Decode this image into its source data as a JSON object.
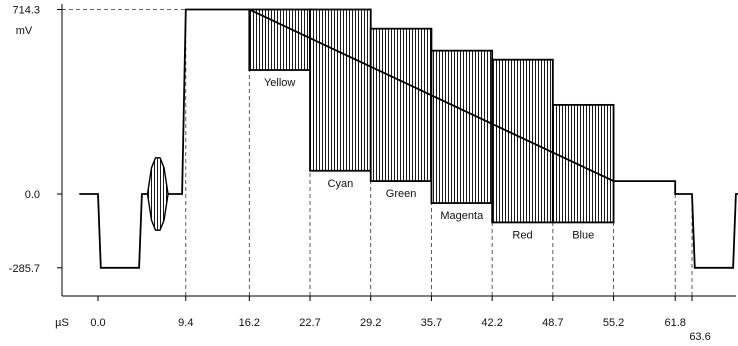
{
  "chart_data": {
    "type": "line",
    "title": "",
    "y_unit": "mV",
    "y_ticks": [
      {
        "label": "714.3",
        "value": 714.3
      },
      {
        "label": "0.0",
        "value": 0.0
      },
      {
        "label": "-285.7",
        "value": -285.7
      }
    ],
    "x_unit": "µS",
    "x_ticks": [
      {
        "label": "0.0",
        "value": 0.0
      },
      {
        "label": "9.4",
        "value": 9.4
      },
      {
        "label": "16.2",
        "value": 16.2
      },
      {
        "label": "22.7",
        "value": 22.7
      },
      {
        "label": "29.2",
        "value": 29.2
      },
      {
        "label": "35.7",
        "value": 35.7
      },
      {
        "label": "42.2",
        "value": 42.2
      },
      {
        "label": "48.7",
        "value": 48.7
      },
      {
        "label": "55.2",
        "value": 55.2
      },
      {
        "label": "61.8",
        "value": 61.8
      },
      {
        "label": "63.6",
        "value": 63.6
      }
    ],
    "bars": [
      {
        "name": "Yellow",
        "start": 16.2,
        "end": 22.7,
        "low": 480,
        "high": 714.3
      },
      {
        "name": "Cyan",
        "start": 22.7,
        "end": 29.2,
        "low": 90,
        "high": 714.3
      },
      {
        "name": "Green",
        "start": 29.2,
        "end": 35.7,
        "low": 50,
        "high": 640
      },
      {
        "name": "Magenta",
        "start": 35.7,
        "end": 42.2,
        "low": -35,
        "high": 555
      },
      {
        "name": "Red",
        "start": 42.2,
        "end": 48.7,
        "low": -110,
        "high": 520
      },
      {
        "name": "Blue",
        "start": 48.7,
        "end": 55.2,
        "low": -110,
        "high": 345
      }
    ],
    "waveform": [
      [
        -2.0,
        0
      ],
      [
        0.0,
        0
      ],
      [
        0.3,
        -285.7
      ],
      [
        4.4,
        -285.7
      ],
      [
        4.7,
        0
      ],
      [
        9.0,
        0
      ],
      [
        9.4,
        714.3
      ],
      [
        16.2,
        714.3
      ],
      [
        55.2,
        50
      ],
      [
        61.8,
        50
      ],
      [
        61.8,
        0
      ],
      [
        63.6,
        0
      ],
      [
        63.9,
        -285.7
      ],
      [
        68.0,
        -285.7
      ],
      [
        68.3,
        0
      ],
      [
        70.0,
        0
      ]
    ],
    "burst": {
      "start": 5.3,
      "end": 7.5,
      "low": -140,
      "high": 140
    },
    "grid": false,
    "legend": "none"
  }
}
